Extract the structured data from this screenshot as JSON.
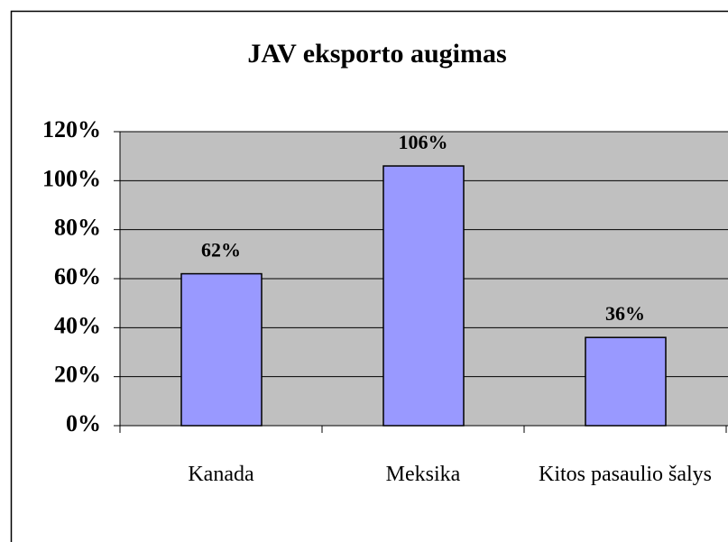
{
  "chart_data": {
    "type": "bar",
    "title": "JAV eksporto augimas",
    "categories": [
      "Kanada",
      "Meksika",
      "Kitos pasaulio šalys"
    ],
    "values": [
      62,
      106,
      36
    ],
    "value_labels": [
      "62%",
      "106%",
      "36%"
    ],
    "color": "#9999ff",
    "ylim": [
      0,
      120
    ],
    "yticks": [
      {
        "value": 0,
        "label": "0%"
      },
      {
        "value": 20,
        "label": "20%"
      },
      {
        "value": 40,
        "label": "40%"
      },
      {
        "value": 60,
        "label": "60%"
      },
      {
        "value": 80,
        "label": "80%"
      },
      {
        "value": 100,
        "label": "100%"
      },
      {
        "value": 120,
        "label": "120%"
      }
    ],
    "grid": true
  }
}
